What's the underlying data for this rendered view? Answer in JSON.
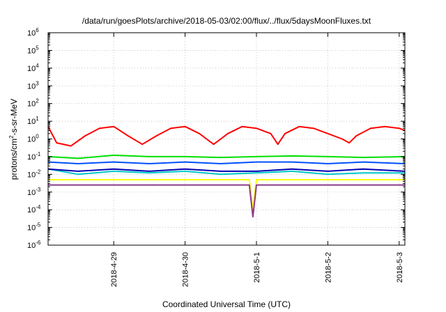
{
  "chart_data": {
    "type": "line",
    "title": "/data/run/goesPlots/archive/2018-05-03/02:00/flux/../flux/5daysMoonFluxes.txt",
    "xlabel": "Coordinated Universal Time (UTC)",
    "ylabel_prefix": "protons/cm",
    "ylabel_sup": "2",
    "ylabel_suffix": "-s-sr-MeV",
    "x_unit": "days since 2018-04-28 00:00",
    "xlim": [
      0.08,
      5.08
    ],
    "ylim_log10": [
      -6,
      6
    ],
    "y_scale": "log",
    "grid": true,
    "x_ticks": [
      {
        "x": 1.0,
        "label": "2018-4-29"
      },
      {
        "x": 2.0,
        "label": "2018-4-30"
      },
      {
        "x": 3.0,
        "label": "2018-5-1"
      },
      {
        "x": 4.0,
        "label": "2018-5-2"
      },
      {
        "x": 5.0,
        "label": "2018-5-3"
      }
    ],
    "y_ticks": [
      {
        "exp": -6,
        "base": "10",
        "sup": "-6"
      },
      {
        "exp": -5,
        "base": "10",
        "sup": "-5"
      },
      {
        "exp": -4,
        "base": "10",
        "sup": "-4"
      },
      {
        "exp": -3,
        "base": "10",
        "sup": "-3"
      },
      {
        "exp": -2,
        "base": "10",
        "sup": "-2"
      },
      {
        "exp": -1,
        "base": "10",
        "sup": "-1"
      },
      {
        "exp": 0,
        "base": "10",
        "sup": "0"
      },
      {
        "exp": 1,
        "base": "10",
        "sup": "1"
      },
      {
        "exp": 2,
        "base": "10",
        "sup": "2"
      },
      {
        "exp": 3,
        "base": "10",
        "sup": "3"
      },
      {
        "exp": 4,
        "base": "10",
        "sup": "4"
      },
      {
        "exp": 5,
        "base": "10",
        "sup": "5"
      },
      {
        "exp": 6,
        "base": "10",
        "sup": "6"
      }
    ],
    "series": [
      {
        "color": "#ff0000",
        "x": [
          0.08,
          0.2,
          0.4,
          0.6,
          0.8,
          1.0,
          1.2,
          1.4,
          1.6,
          1.8,
          2.0,
          2.2,
          2.4,
          2.6,
          2.8,
          3.0,
          3.2,
          3.3,
          3.4,
          3.6,
          3.8,
          4.0,
          4.2,
          4.3,
          4.4,
          4.6,
          4.8,
          5.0,
          5.08
        ],
        "y": [
          5,
          0.6,
          0.4,
          1.5,
          4,
          5,
          1.5,
          0.5,
          1.5,
          4,
          5,
          2,
          0.5,
          2,
          5,
          4,
          2,
          0.5,
          2,
          5,
          4,
          2,
          1,
          0.6,
          1.5,
          4,
          5,
          4,
          3
        ]
      },
      {
        "color": "#00e000",
        "x": [
          0.08,
          0.5,
          1.0,
          1.5,
          2.0,
          2.5,
          3.0,
          3.5,
          4.0,
          4.5,
          5.08
        ],
        "y": [
          0.1,
          0.08,
          0.12,
          0.1,
          0.1,
          0.09,
          0.1,
          0.11,
          0.1,
          0.09,
          0.1
        ]
      },
      {
        "color": "#0050ff",
        "x": [
          0.08,
          0.5,
          1.0,
          1.5,
          2.0,
          2.5,
          3.0,
          3.5,
          4.0,
          4.5,
          5.08
        ],
        "y": [
          0.05,
          0.04,
          0.05,
          0.04,
          0.05,
          0.04,
          0.05,
          0.05,
          0.04,
          0.05,
          0.04
        ]
      },
      {
        "color": "#00c8c8",
        "x": [
          0.08,
          0.5,
          1.0,
          1.5,
          2.0,
          2.5,
          3.0,
          3.5,
          4.0,
          4.5,
          5.08
        ],
        "y": [
          0.02,
          0.01,
          0.015,
          0.012,
          0.015,
          0.01,
          0.012,
          0.015,
          0.01,
          0.012,
          0.012
        ]
      },
      {
        "color": "#0000b4",
        "x": [
          0.08,
          0.5,
          1.0,
          1.5,
          2.0,
          2.5,
          3.0,
          3.5,
          4.0,
          4.5,
          5.08
        ],
        "y": [
          0.02,
          0.015,
          0.02,
          0.015,
          0.02,
          0.015,
          0.015,
          0.02,
          0.015,
          0.02,
          0.015
        ]
      },
      {
        "color": "#ffff00",
        "x": [
          0.08,
          0.5,
          1.0,
          1.5,
          2.0,
          2.5,
          2.9,
          2.95,
          3.0,
          3.5,
          4.0,
          4.5,
          5.08
        ],
        "y": [
          0.005,
          0.005,
          0.005,
          0.005,
          0.005,
          0.005,
          0.005,
          0.0001,
          0.005,
          0.005,
          0.005,
          0.005,
          0.005
        ]
      },
      {
        "color": "#8b3a8b",
        "x": [
          0.08,
          0.5,
          1.0,
          1.5,
          2.0,
          2.5,
          2.9,
          2.95,
          3.0,
          3.5,
          4.0,
          4.5,
          5.08
        ],
        "y": [
          0.0025,
          0.0025,
          0.0025,
          0.0025,
          0.0025,
          0.0025,
          0.0025,
          4e-05,
          0.0025,
          0.0025,
          0.0025,
          0.0025,
          0.0025
        ]
      }
    ]
  }
}
